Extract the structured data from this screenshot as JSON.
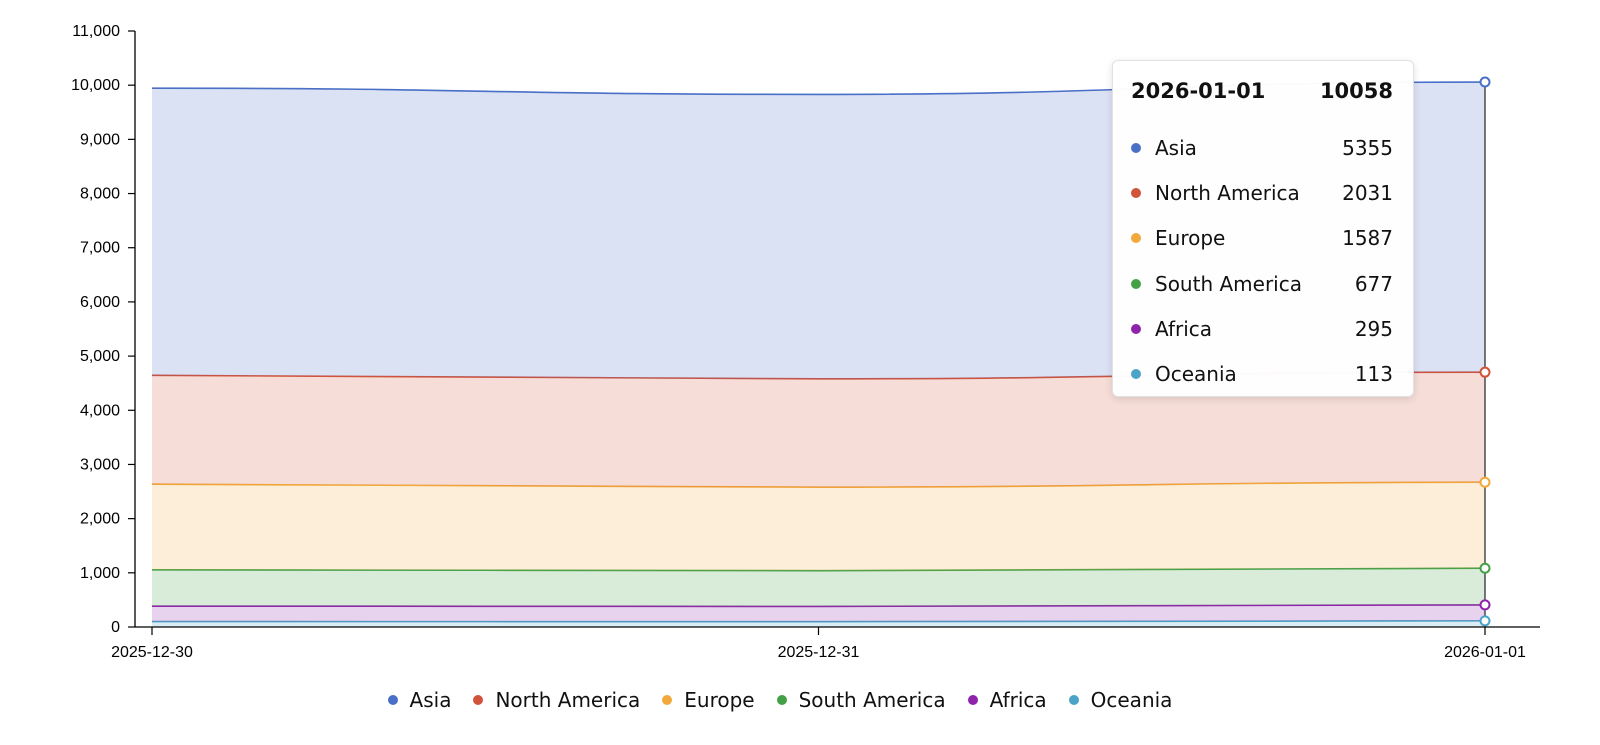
{
  "chart_data": {
    "type": "area",
    "stacked": true,
    "x": [
      "2025-12-30",
      "2025-12-31",
      "2026-01-01"
    ],
    "ylim": [
      0,
      11000
    ],
    "yticks": [
      "0",
      "1,000",
      "2,000",
      "3,000",
      "4,000",
      "5,000",
      "6,000",
      "7,000",
      "8,000",
      "9,000",
      "10,000",
      "11,000"
    ],
    "legend_position": "bottom-center",
    "grid": false,
    "series": [
      {
        "name": "Oceania",
        "color": "#4ba3c7",
        "values": [
          100,
          98,
          113
        ]
      },
      {
        "name": "Africa",
        "color": "#8e24aa",
        "values": [
          285,
          282,
          295
        ]
      },
      {
        "name": "South America",
        "color": "#43a047",
        "values": [
          670,
          660,
          677
        ]
      },
      {
        "name": "Europe",
        "color": "#f2a93b",
        "values": [
          1580,
          1540,
          1587
        ]
      },
      {
        "name": "North America",
        "color": "#d0533b",
        "values": [
          2010,
          2000,
          2031
        ]
      },
      {
        "name": "Asia",
        "color": "#4a6fc7",
        "values": [
          5300,
          5250,
          5355
        ]
      }
    ]
  },
  "tooltip": {
    "date": "2026-01-01",
    "total": "10058",
    "rows": [
      {
        "name": "Asia",
        "value": "5355",
        "color": "#4a6fc7"
      },
      {
        "name": "North America",
        "value": "2031",
        "color": "#d0533b"
      },
      {
        "name": "Europe",
        "value": "1587",
        "color": "#f2a93b"
      },
      {
        "name": "South America",
        "value": "677",
        "color": "#43a047"
      },
      {
        "name": "Africa",
        "value": "295",
        "color": "#8e24aa"
      },
      {
        "name": "Oceania",
        "value": "113",
        "color": "#4ba3c7"
      }
    ]
  },
  "legend": [
    {
      "name": "Asia",
      "color": "#4a6fc7"
    },
    {
      "name": "North America",
      "color": "#d0533b"
    },
    {
      "name": "Europe",
      "color": "#f2a93b"
    },
    {
      "name": "South America",
      "color": "#43a047"
    },
    {
      "name": "Africa",
      "color": "#8e24aa"
    },
    {
      "name": "Oceania",
      "color": "#4ba3c7"
    }
  ]
}
